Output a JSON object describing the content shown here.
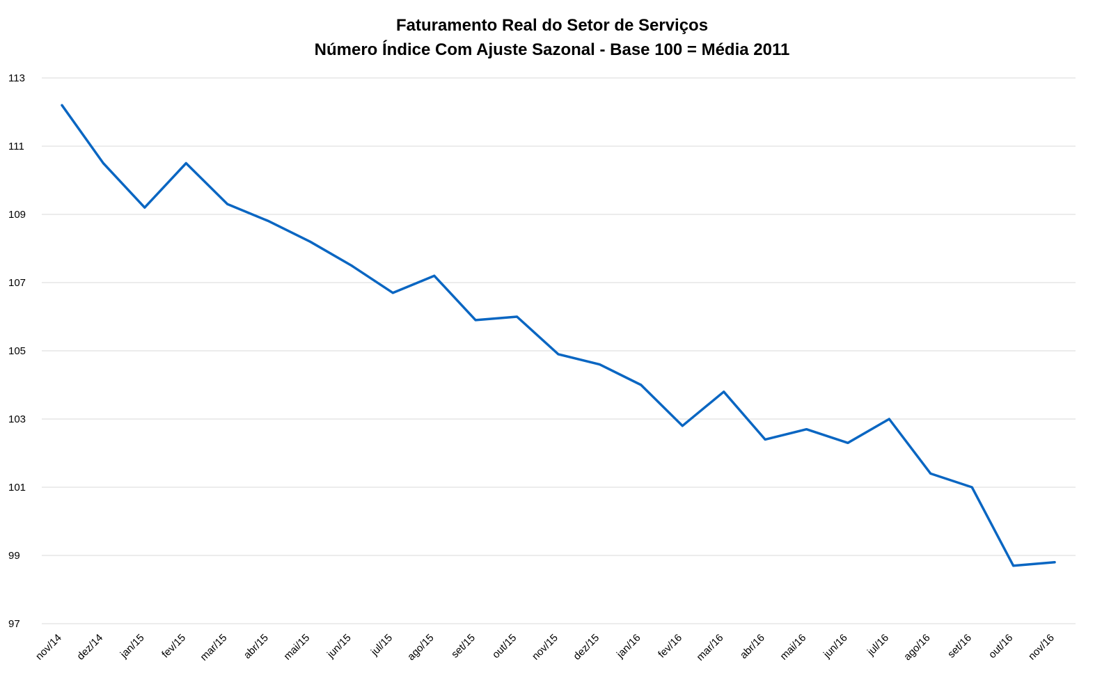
{
  "chart_data": {
    "type": "line",
    "title": "Faturamento Real do Setor de Serviços",
    "subtitle": "Número Índice Com Ajuste Sazonal - Base 100 = Média 2011",
    "xlabel": "",
    "ylabel": "",
    "categories": [
      "nov/14",
      "dez/14",
      "jan/15",
      "fev/15",
      "mar/15",
      "abr/15",
      "mai/15",
      "jun/15",
      "jul/15",
      "ago/15",
      "set/15",
      "out/15",
      "nov/15",
      "dez/15",
      "jan/16",
      "fev/16",
      "mar/16",
      "abr/16",
      "mai/16",
      "jun/16",
      "jul/16",
      "ago/16",
      "set/16",
      "out/16",
      "nov/16"
    ],
    "series": [
      {
        "values": [
          112.2,
          110.5,
          109.2,
          110.5,
          109.3,
          108.8,
          108.2,
          107.5,
          106.7,
          107.2,
          105.9,
          106.0,
          104.9,
          104.6,
          104.0,
          102.8,
          103.8,
          102.4,
          102.7,
          102.3,
          103.0,
          101.4,
          101.0,
          98.7,
          98.8
        ],
        "color": "#0a66c2"
      }
    ],
    "ylim": [
      97,
      113
    ],
    "yticks": [
      97,
      99,
      101,
      103,
      105,
      107,
      109,
      111,
      113
    ],
    "grid": true,
    "legend": "none"
  }
}
